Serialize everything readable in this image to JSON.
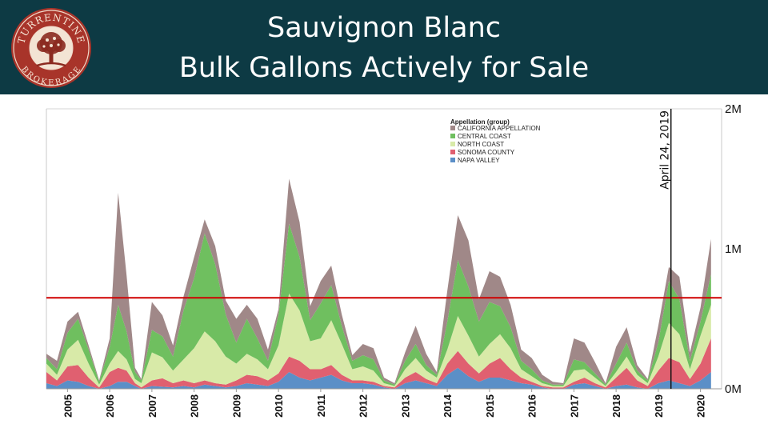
{
  "header": {
    "title_line1": "Sauvignon Blanc",
    "title_line2": "Bulk Gallons Actively for Sale",
    "logo_text_top": "TURRENTINE",
    "logo_text_bottom": "BROKERAGE",
    "background_color": "#0d3a44"
  },
  "chart_data": {
    "type": "area",
    "stacked": true,
    "title": "Sauvignon Blanc Bulk Gallons Actively for Sale",
    "xlabel": "",
    "ylabel": "",
    "xlim": [
      2004.5,
      2020.5
    ],
    "ylim": [
      0,
      2000000
    ],
    "y_ticks": [
      0,
      1000000,
      2000000
    ],
    "y_tick_labels": [
      "0M",
      "1M",
      "2M"
    ],
    "y_axis_side": "right",
    "x_ticks": [
      2005,
      2006,
      2007,
      2008,
      2009,
      2010,
      2011,
      2012,
      2013,
      2014,
      2015,
      2016,
      2017,
      2018,
      2019,
      2020
    ],
    "x_tick_labels": [
      "2005",
      "2006",
      "2007",
      "2008",
      "2009",
      "2010",
      "2011",
      "2012",
      "2013",
      "2014",
      "2015",
      "2016",
      "2017",
      "2018",
      "2019",
      "2020"
    ],
    "legend": {
      "title": "Appellation (group)",
      "position": "top-center",
      "entries": [
        "CALIFORNIA APPELLATION",
        "CENTRAL COAST",
        "NORTH COAST",
        "SONOMA COUNTY",
        "NAPA VALLEY"
      ]
    },
    "x": [
      2004.5,
      2004.75,
      2005.0,
      2005.25,
      2005.5,
      2005.75,
      2006.0,
      2006.2,
      2006.4,
      2006.6,
      2006.75,
      2007.0,
      2007.25,
      2007.5,
      2007.75,
      2008.0,
      2008.25,
      2008.5,
      2008.75,
      2009.0,
      2009.25,
      2009.5,
      2009.75,
      2010.0,
      2010.25,
      2010.5,
      2010.75,
      2011.0,
      2011.25,
      2011.5,
      2011.75,
      2012.0,
      2012.25,
      2012.5,
      2012.75,
      2013.0,
      2013.25,
      2013.5,
      2013.75,
      2014.0,
      2014.25,
      2014.5,
      2014.75,
      2015.0,
      2015.25,
      2015.5,
      2015.75,
      2016.0,
      2016.25,
      2016.5,
      2016.75,
      2017.0,
      2017.25,
      2017.5,
      2017.75,
      2018.0,
      2018.25,
      2018.5,
      2018.75,
      2019.0,
      2019.25,
      2019.5,
      2019.75,
      2020.0,
      2020.25
    ],
    "series": [
      {
        "name": "NAPA VALLEY",
        "color": "#5b8fc7",
        "values": [
          40000,
          20000,
          60000,
          50000,
          20000,
          0,
          20000,
          50000,
          50000,
          20000,
          0,
          20000,
          15000,
          10000,
          20000,
          10000,
          30000,
          20000,
          10000,
          20000,
          40000,
          30000,
          20000,
          50000,
          120000,
          80000,
          60000,
          80000,
          100000,
          60000,
          40000,
          40000,
          30000,
          10000,
          0,
          40000,
          60000,
          40000,
          20000,
          100000,
          150000,
          90000,
          50000,
          80000,
          80000,
          60000,
          40000,
          30000,
          10000,
          0,
          0,
          30000,
          40000,
          20000,
          0,
          20000,
          30000,
          10000,
          0,
          40000,
          60000,
          40000,
          20000,
          60000,
          120000
        ]
      },
      {
        "name": "SONOMA COUNTY",
        "color": "#e06070",
        "values": [
          80000,
          40000,
          100000,
          120000,
          60000,
          10000,
          100000,
          100000,
          80000,
          20000,
          10000,
          40000,
          60000,
          30000,
          40000,
          30000,
          30000,
          20000,
          20000,
          40000,
          60000,
          60000,
          40000,
          60000,
          110000,
          120000,
          80000,
          60000,
          70000,
          40000,
          20000,
          20000,
          20000,
          10000,
          10000,
          40000,
          60000,
          30000,
          20000,
          80000,
          120000,
          90000,
          60000,
          100000,
          140000,
          80000,
          40000,
          20000,
          10000,
          10000,
          10000,
          20000,
          40000,
          20000,
          10000,
          60000,
          120000,
          50000,
          20000,
          90000,
          160000,
          150000,
          50000,
          120000,
          240000
        ]
      },
      {
        "name": "NORTH COAST",
        "color": "#d8eaa8",
        "values": [
          60000,
          40000,
          120000,
          180000,
          100000,
          20000,
          60000,
          120000,
          80000,
          30000,
          30000,
          200000,
          150000,
          90000,
          150000,
          250000,
          350000,
          300000,
          200000,
          120000,
          150000,
          120000,
          80000,
          200000,
          450000,
          360000,
          200000,
          220000,
          320000,
          220000,
          80000,
          100000,
          80000,
          20000,
          10000,
          60000,
          100000,
          60000,
          40000,
          100000,
          250000,
          200000,
          120000,
          140000,
          170000,
          150000,
          60000,
          40000,
          20000,
          10000,
          10000,
          80000,
          60000,
          40000,
          10000,
          40000,
          80000,
          40000,
          20000,
          100000,
          250000,
          200000,
          70000,
          200000,
          240000
        ]
      },
      {
        "name": "CENTRAL COAST",
        "color": "#6fbf5f",
        "values": [
          40000,
          40000,
          120000,
          150000,
          100000,
          20000,
          120000,
          330000,
          200000,
          50000,
          20000,
          160000,
          150000,
          100000,
          350000,
          500000,
          700000,
          550000,
          300000,
          150000,
          250000,
          150000,
          60000,
          220000,
          500000,
          380000,
          150000,
          250000,
          250000,
          130000,
          60000,
          80000,
          80000,
          20000,
          10000,
          60000,
          100000,
          40000,
          20000,
          200000,
          400000,
          350000,
          250000,
          300000,
          200000,
          150000,
          60000,
          50000,
          20000,
          10000,
          10000,
          80000,
          50000,
          30000,
          10000,
          60000,
          100000,
          30000,
          20000,
          100000,
          300000,
          250000,
          60000,
          100000,
          220000
        ]
      },
      {
        "name": "CALIFORNIA APPELLATION",
        "color": "#a08888",
        "values": [
          30000,
          60000,
          80000,
          50000,
          30000,
          10000,
          60000,
          800000,
          400000,
          30000,
          10000,
          200000,
          150000,
          80000,
          100000,
          150000,
          100000,
          130000,
          100000,
          170000,
          100000,
          140000,
          80000,
          40000,
          320000,
          250000,
          100000,
          160000,
          140000,
          80000,
          40000,
          80000,
          80000,
          20000,
          10000,
          60000,
          130000,
          80000,
          20000,
          220000,
          320000,
          330000,
          160000,
          220000,
          210000,
          160000,
          80000,
          80000,
          40000,
          20000,
          10000,
          150000,
          140000,
          80000,
          10000,
          120000,
          110000,
          40000,
          10000,
          120000,
          100000,
          160000,
          60000,
          100000,
          250000
        ]
      }
    ],
    "reference_line": {
      "value": 650000,
      "color": "#d00000",
      "label": ""
    },
    "annotation": {
      "x": 2019.3,
      "label": "April 24, 2019"
    }
  }
}
